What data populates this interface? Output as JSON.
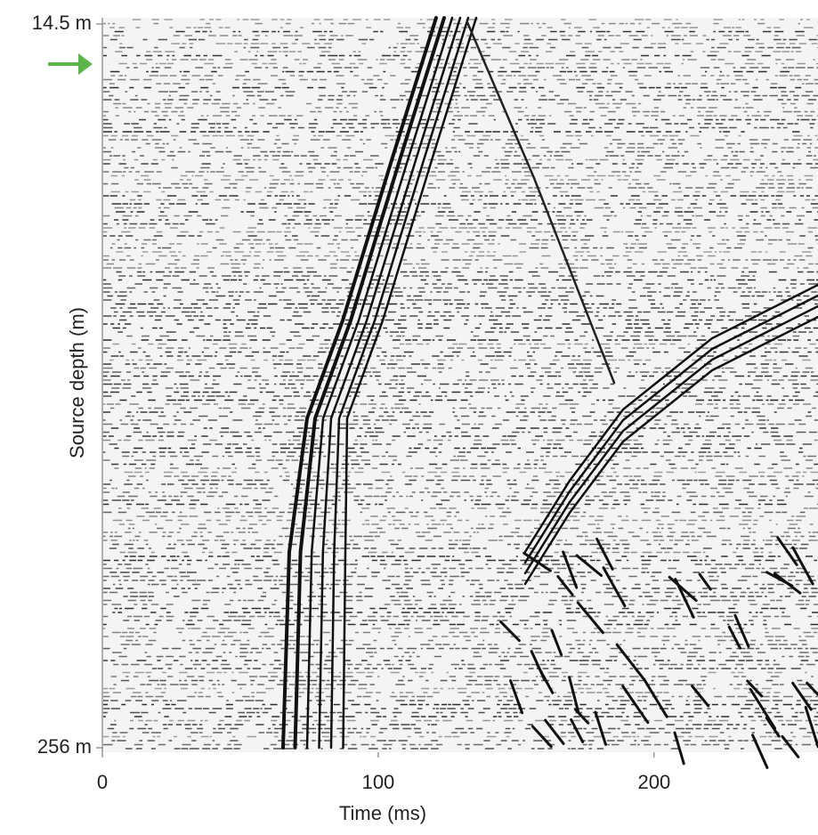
{
  "chart_data": {
    "type": "seismic",
    "xlabel": "Time (ms)",
    "ylabel": "Source depth (m)",
    "xlim": [
      0,
      259.4
    ],
    "xticks": [
      0,
      100,
      200
    ],
    "ylim": [
      14.5,
      256
    ],
    "yticks": [
      {
        "value": 14.5,
        "label": "14.5 m"
      },
      {
        "value": 256,
        "label": "256 m"
      }
    ]
  }
}
